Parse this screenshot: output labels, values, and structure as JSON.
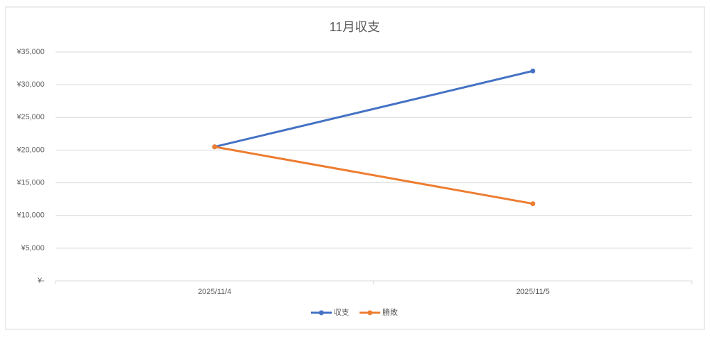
{
  "chart_data": {
    "type": "line",
    "title": "11月収支",
    "categories": [
      "2025/11/4",
      "2025/11/5"
    ],
    "series": [
      {
        "name": "収支",
        "color": "#4472c4",
        "values": [
          20500,
          32100
        ]
      },
      {
        "name": "勝敗",
        "color": "#ed7d31",
        "values": [
          20500,
          11800
        ]
      }
    ],
    "ylim": [
      0,
      35000
    ],
    "yticks": [
      {
        "value": 0,
        "label": "¥-"
      },
      {
        "value": 5000,
        "label": "¥5,000"
      },
      {
        "value": 10000,
        "label": "¥10,000"
      },
      {
        "value": 15000,
        "label": "¥15,000"
      },
      {
        "value": 20000,
        "label": "¥20,000"
      },
      {
        "value": 25000,
        "label": "¥25,000"
      },
      {
        "value": 30000,
        "label": "¥30,000"
      },
      {
        "value": 35000,
        "label": "¥35,000"
      }
    ],
    "grid": true,
    "legend": "bottom"
  }
}
